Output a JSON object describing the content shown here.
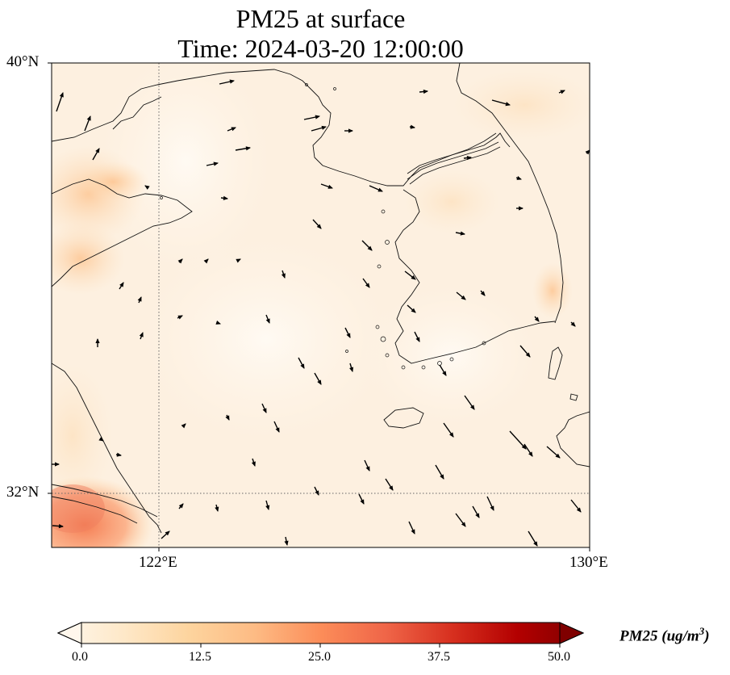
{
  "title": {
    "line1": "PM25 at surface",
    "line2": "Time: 2024-03-20 12:00:00"
  },
  "axes": {
    "lat_ticks": [
      "40°N",
      "32°N"
    ],
    "lon_ticks": [
      "122°E",
      "130°E"
    ]
  },
  "colorbar": {
    "ticks": [
      "0.0",
      "12.5",
      "25.0",
      "37.5",
      "50.0"
    ],
    "label": "PM25 (ug/m",
    "label_sup": "3",
    "label_end": ")",
    "range": [
      0,
      50
    ],
    "cmap": "OrRd",
    "colors": [
      "#fff7ec",
      "#fee8c8",
      "#fdd49e",
      "#fdbb84",
      "#fc8d59",
      "#ef6548",
      "#d7301f",
      "#b30000",
      "#7f0000"
    ],
    "extend": "both"
  },
  "map": {
    "lon_range": [
      120,
      130
    ],
    "lat_range": [
      31,
      40
    ],
    "gridlines": "dotted at 122°E and 32°N"
  }
}
